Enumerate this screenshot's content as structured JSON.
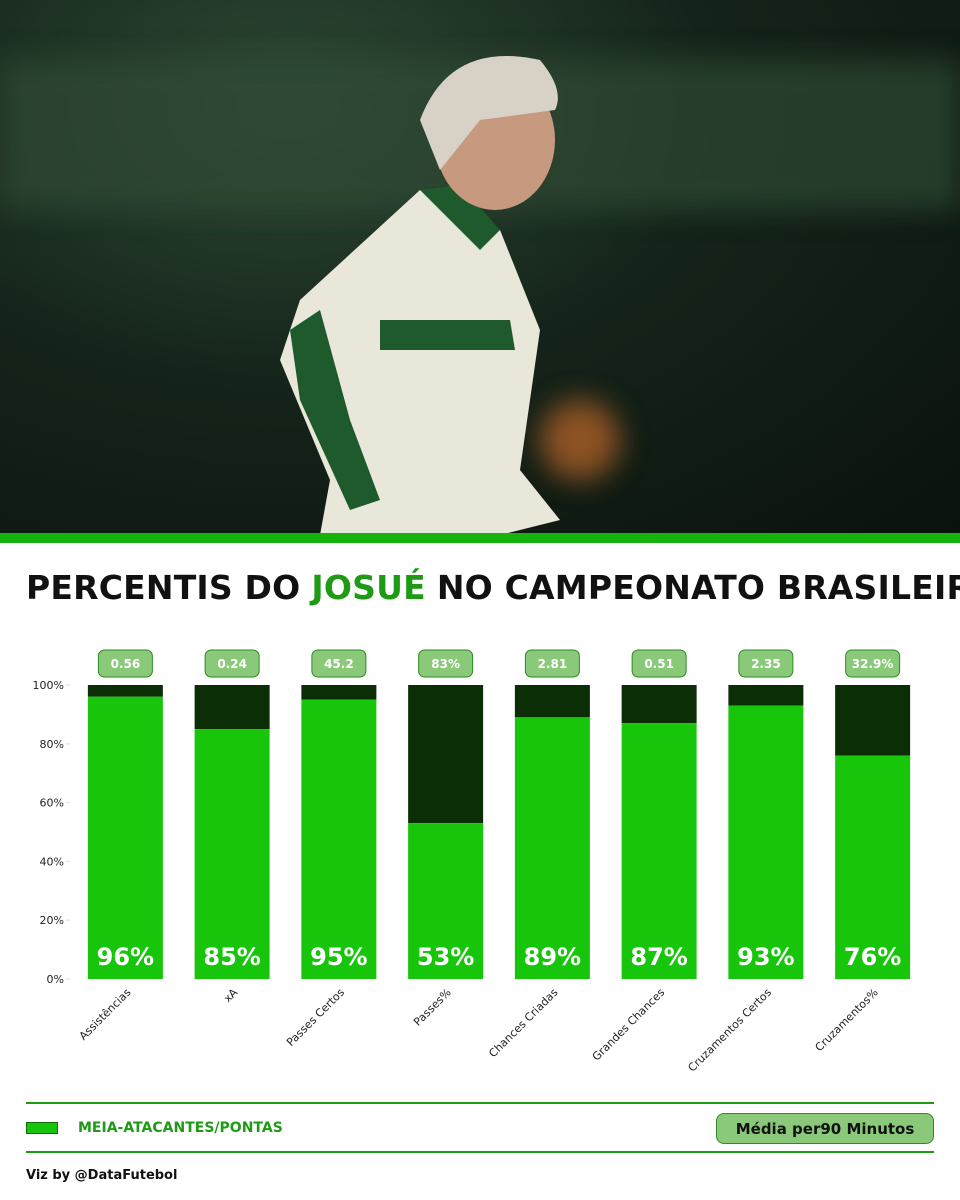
{
  "chart_data": {
    "type": "stacked_percentile_bar",
    "title": {
      "prefix": "PERCENTIS DO",
      "highlight": "JOSUÉ",
      "suffix": "NO CAMPEONATO BRASILEIRO"
    },
    "categories": [
      "Assistências",
      "xA",
      "Passes Certos",
      "Passes%",
      "Chances Criadas",
      "Grandes Chances",
      "Cruzamentos Certos",
      "Cruzamentos%"
    ],
    "series": [
      {
        "name": "MEIA-ATACANTES/PONTAS",
        "color": "#17c60a",
        "track_color": "#0b2e06",
        "values": [
          96,
          85,
          95,
          53,
          89,
          87,
          93,
          76
        ],
        "value_labels": [
          "96%",
          "85%",
          "95%",
          "53%",
          "89%",
          "87%",
          "93%",
          "76%"
        ]
      }
    ],
    "raw_labels": [
      "0.56",
      "0.24",
      "45.2",
      "83%",
      "2.81",
      "0.51",
      "2.35",
      "32.9%"
    ],
    "ylim": [
      0,
      100
    ],
    "yticks": [
      {
        "value": 0,
        "label": "0%"
      },
      {
        "value": 20,
        "label": "20%"
      },
      {
        "value": 40,
        "label": "40%"
      },
      {
        "value": 60,
        "label": "60%"
      },
      {
        "value": 80,
        "label": "80%"
      },
      {
        "value": 100,
        "label": "100%"
      }
    ],
    "metric_note": "Média per90 Minutos",
    "credit": "Viz by @DataFutebol"
  }
}
